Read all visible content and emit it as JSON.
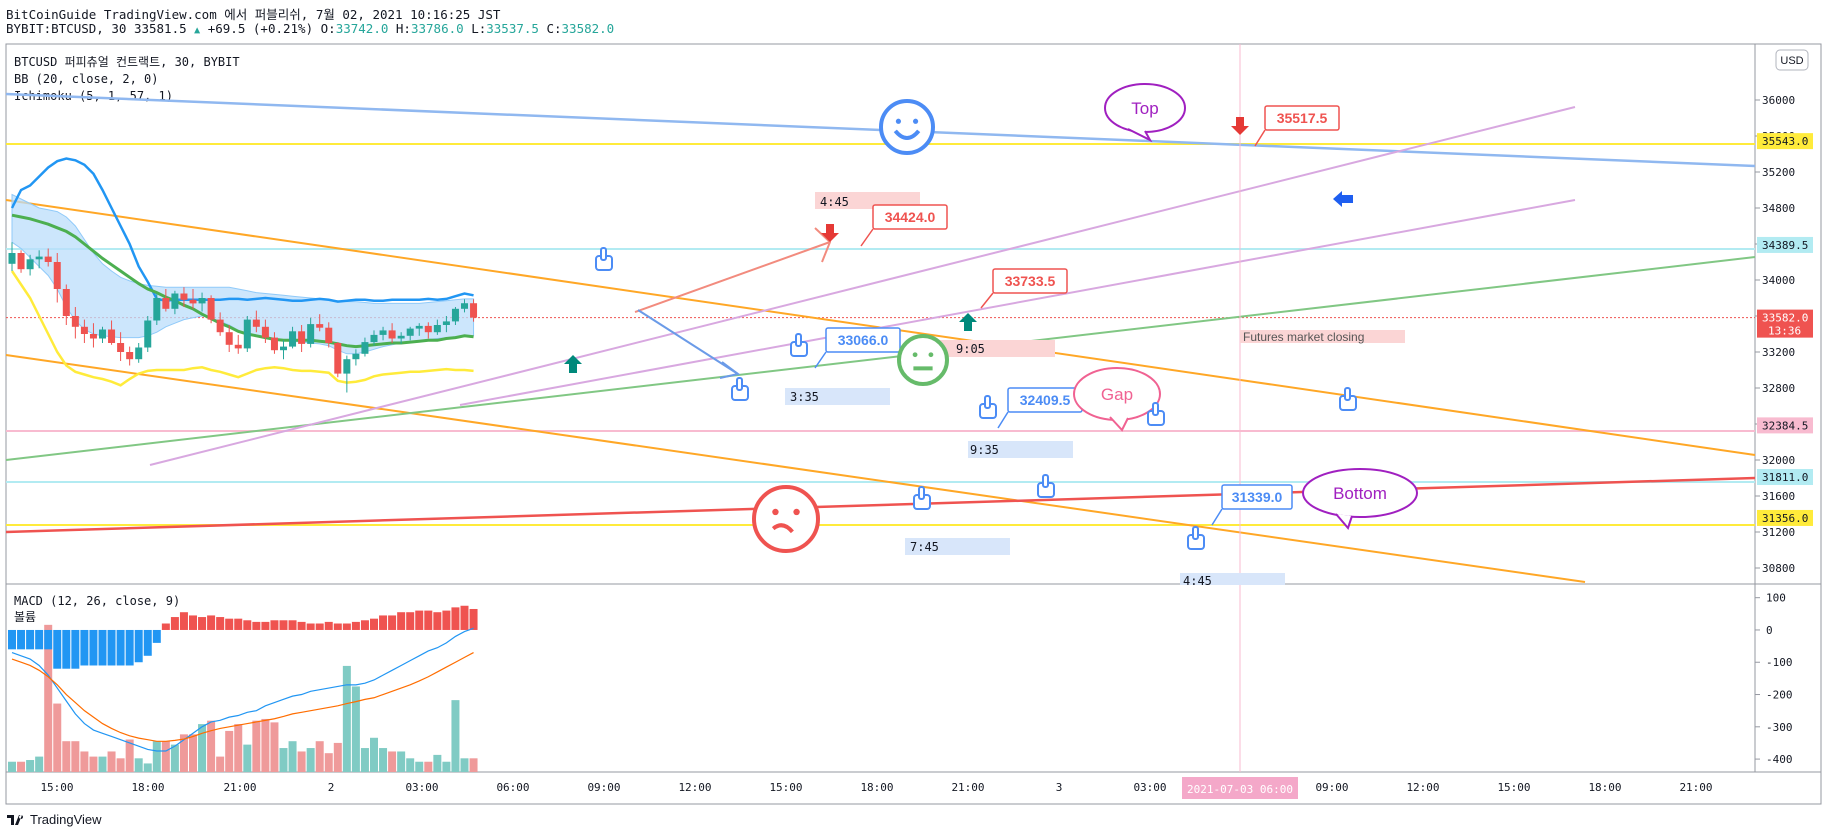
{
  "header": {
    "line1": "BitCoinGuide TradingView.com 에서 퍼블리쉬, 7월 02, 2021 10:16:25 JST",
    "symbol": "BYBIT:BTCUSD, 30",
    "last": "33581.5",
    "change_arrow": "▲",
    "change": "+69.5 (+0.21%)",
    "o": "33742.0",
    "h": "33786.0",
    "l": "33537.5",
    "c": "33582.0"
  },
  "legend": {
    "line1": "BTCUSD 퍼피츄얼 컨트랙트, 30, BYBIT",
    "line2": "BB (20, close, 2, 0)",
    "line3": "Ichimoku (5, 1, 57, 1)"
  },
  "currency": "USD",
  "footer": "TradingView",
  "colors": {
    "up": "#26a69a",
    "down": "#ef5350",
    "bb": "#2196f3",
    "yellow": "#ffeb3b",
    "green": "#66bb6a",
    "orange": "#ffa726",
    "violet": "#ce93d8",
    "cloud": "#bbdefb",
    "redline": "#ef5350"
  },
  "chart_data": [
    {
      "type": "candlestick",
      "title": "BTCUSD 퍼피츄얼 컨트랙트, 30, BYBIT",
      "x_ticks": [
        "15:00",
        "18:00",
        "21:00",
        "2",
        "03:00",
        "06:00",
        "09:00",
        "12:00",
        "15:00",
        "18:00",
        "21:00",
        "3",
        "03:00",
        "06:00",
        "09:00",
        "12:00",
        "15:00",
        "18:00",
        "21:00"
      ],
      "cursor_time_label": "2021-07-03  06:00",
      "y_ticks": [
        36000,
        35600,
        35200,
        34800,
        34400,
        34000,
        33600,
        33200,
        32800,
        32400,
        32000,
        31600,
        31200,
        30800
      ],
      "ylim": [
        30700,
        36500
      ],
      "candles": [
        [
          34180,
          34420,
          34100,
          34300
        ],
        [
          34300,
          34330,
          34080,
          34120
        ],
        [
          34120,
          34280,
          34050,
          34230
        ],
        [
          34230,
          34330,
          34130,
          34260
        ],
        [
          34260,
          34350,
          34150,
          34200
        ],
        [
          34200,
          34300,
          33750,
          33900
        ],
        [
          33900,
          33950,
          33500,
          33600
        ],
        [
          33600,
          33700,
          33350,
          33480
        ],
        [
          33480,
          33560,
          33300,
          33400
        ],
        [
          33400,
          33520,
          33250,
          33350
        ],
        [
          33350,
          33480,
          33300,
          33450
        ],
        [
          33450,
          33550,
          33280,
          33300
        ],
        [
          33300,
          33420,
          33100,
          33200
        ],
        [
          33200,
          33260,
          33050,
          33120
        ],
        [
          33120,
          33300,
          33080,
          33250
        ],
        [
          33250,
          33600,
          33200,
          33550
        ],
        [
          33550,
          33850,
          33500,
          33800
        ],
        [
          33800,
          33900,
          33650,
          33680
        ],
        [
          33680,
          33880,
          33620,
          33850
        ],
        [
          33850,
          33920,
          33700,
          33780
        ],
        [
          33780,
          33900,
          33680,
          33740
        ],
        [
          33740,
          33860,
          33650,
          33800
        ],
        [
          33800,
          33830,
          33520,
          33560
        ],
        [
          33560,
          33640,
          33380,
          33420
        ],
        [
          33420,
          33500,
          33200,
          33280
        ],
        [
          33280,
          33390,
          33180,
          33240
        ],
        [
          33240,
          33600,
          33200,
          33560
        ],
        [
          33560,
          33660,
          33420,
          33480
        ],
        [
          33480,
          33560,
          33300,
          33360
        ],
        [
          33360,
          33420,
          33180,
          33220
        ],
        [
          33220,
          33330,
          33120,
          33260
        ],
        [
          33260,
          33480,
          33240,
          33430
        ],
        [
          33430,
          33500,
          33200,
          33290
        ],
        [
          33290,
          33580,
          33250,
          33510
        ],
        [
          33510,
          33620,
          33430,
          33470
        ],
        [
          33470,
          33530,
          33250,
          33300
        ],
        [
          33300,
          33310,
          32920,
          32960
        ],
        [
          32960,
          33160,
          32750,
          33120
        ],
        [
          33120,
          33230,
          33050,
          33180
        ],
        [
          33180,
          33360,
          33150,
          33310
        ],
        [
          33310,
          33440,
          33270,
          33390
        ],
        [
          33390,
          33480,
          33330,
          33440
        ],
        [
          33440,
          33520,
          33300,
          33350
        ],
        [
          33350,
          33420,
          33290,
          33380
        ],
        [
          33380,
          33480,
          33330,
          33460
        ],
        [
          33460,
          33520,
          33380,
          33490
        ],
        [
          33490,
          33530,
          33350,
          33420
        ],
        [
          33420,
          33560,
          33390,
          33500
        ],
        [
          33500,
          33600,
          33420,
          33540
        ],
        [
          33540,
          33700,
          33500,
          33680
        ],
        [
          33680,
          33786,
          33640,
          33742
        ],
        [
          33742,
          33786,
          33537,
          33582
        ]
      ],
      "bb_upper": [
        34800,
        35000,
        35050,
        35150,
        35250,
        35320,
        35350,
        35330,
        35280,
        35180,
        35000,
        34800,
        34600,
        34400,
        34150,
        33980,
        33790,
        33770,
        33780,
        33780,
        33780,
        33780,
        33780,
        33780,
        33790,
        33790,
        33780,
        33790,
        33800,
        33790,
        33780,
        33770,
        33770,
        33780,
        33790,
        33780,
        33760,
        33770,
        33780,
        33780,
        33770,
        33770,
        33780,
        33780,
        33780,
        33780,
        33790,
        33780,
        33790,
        33820,
        33850,
        33830
      ],
      "bb_middle": [
        34720,
        34700,
        34680,
        34650,
        34620,
        34580,
        34540,
        34480,
        34400,
        34320,
        34240,
        34170,
        34100,
        34030,
        33960,
        33900,
        33860,
        33810,
        33770,
        33720,
        33680,
        33620,
        33570,
        33520,
        33480,
        33430,
        33400,
        33380,
        33360,
        33340,
        33330,
        33330,
        33330,
        33330,
        33320,
        33310,
        33290,
        33270,
        33260,
        33270,
        33280,
        33290,
        33300,
        33300,
        33310,
        33320,
        33330,
        33330,
        33350,
        33360,
        33380,
        33370
      ],
      "bb_lower": [
        34100,
        33950,
        33800,
        33600,
        33400,
        33200,
        33050,
        32980,
        32950,
        32920,
        32900,
        32870,
        32830,
        32900,
        32960,
        32990,
        33000,
        33000,
        33000,
        33000,
        33020,
        33030,
        33000,
        32980,
        32950,
        32920,
        32960,
        33000,
        33020,
        33030,
        33020,
        33000,
        32990,
        32990,
        32980,
        32970,
        32880,
        32860,
        32870,
        32890,
        32930,
        32950,
        32960,
        32970,
        32980,
        32980,
        32990,
        33000,
        33010,
        33000,
        33000,
        32990
      ],
      "annotations": [
        {
          "text": "35517.5",
          "price": 35517.5,
          "color": "#ef5350"
        },
        {
          "text": "34424.0",
          "price": 34424.0,
          "color": "#ef5350"
        },
        {
          "text": "33733.5",
          "price": 33733.5,
          "color": "#ef5350"
        },
        {
          "text": "33066.0",
          "price": 33066.0,
          "color": "#4c8cf5"
        },
        {
          "text": "32409.5",
          "price": 32409.5,
          "color": "#4c8cf5"
        },
        {
          "text": "31339.0",
          "price": 31339.0,
          "color": "#4c8cf5"
        },
        {
          "text": "Top",
          "color": "#a020c0"
        },
        {
          "text": "Bottom",
          "color": "#a020c0"
        },
        {
          "text": "Gap",
          "color": "#f06292"
        },
        {
          "text": "Futures market closing",
          "color": "#555555"
        },
        {
          "text": "4:45"
        },
        {
          "text": "3:35"
        },
        {
          "text": "9:05"
        },
        {
          "text": "9:35"
        },
        {
          "text": "7:45"
        },
        {
          "text": "4:45"
        }
      ],
      "price_labels": [
        {
          "text": "35543.0",
          "value": 35543.0,
          "color": "#ffeb3b"
        },
        {
          "text": "34389.5",
          "value": 34389.5,
          "color": "#b2ebf2"
        },
        {
          "text": "33582.0",
          "value": 33582.0,
          "color": "#ef5350",
          "sub": "13:36"
        },
        {
          "text": "32384.5",
          "value": 32384.5,
          "color": "#f8bbd0"
        },
        {
          "text": "31811.0",
          "value": 31811.0,
          "color": "#b2ebf2"
        },
        {
          "text": "31356.0",
          "value": 31356.0,
          "color": "#ffeb3b"
        }
      ]
    },
    {
      "type": "bar",
      "title": "MACD (12, 26, close, 9)",
      "subtitle": "볼륨",
      "y_ticks": [
        100,
        0,
        -100,
        -200,
        -300,
        -400
      ],
      "ylim": [
        -440,
        130
      ],
      "histogram": [
        -60,
        -60,
        -60,
        -60,
        -60,
        -120,
        -120,
        -120,
        -110,
        -110,
        -110,
        -110,
        -110,
        -110,
        -100,
        -80,
        -40,
        20,
        40,
        55,
        45,
        40,
        45,
        40,
        35,
        35,
        30,
        25,
        25,
        30,
        30,
        30,
        25,
        20,
        20,
        25,
        20,
        20,
        25,
        30,
        35,
        45,
        45,
        55,
        55,
        60,
        60,
        55,
        60,
        70,
        75,
        65
      ],
      "macd": [
        -70,
        -80,
        -90,
        -110,
        -140,
        -180,
        -220,
        -260,
        -290,
        -310,
        -320,
        -330,
        -340,
        -350,
        -360,
        -370,
        -375,
        -375,
        -360,
        -340,
        -320,
        -300,
        -285,
        -280,
        -270,
        -265,
        -255,
        -250,
        -235,
        -225,
        -215,
        -205,
        -200,
        -190,
        -185,
        -180,
        -175,
        -170,
        -170,
        -165,
        -155,
        -140,
        -125,
        -110,
        -95,
        -80,
        -65,
        -55,
        -40,
        -20,
        -5,
        5
      ],
      "signal": [
        -90,
        -100,
        -110,
        -125,
        -145,
        -170,
        -200,
        -225,
        -250,
        -270,
        -290,
        -305,
        -318,
        -328,
        -335,
        -340,
        -345,
        -345,
        -342,
        -338,
        -330,
        -320,
        -312,
        -305,
        -300,
        -295,
        -290,
        -285,
        -280,
        -275,
        -268,
        -260,
        -255,
        -250,
        -245,
        -240,
        -235,
        -228,
        -222,
        -215,
        -210,
        -200,
        -190,
        -180,
        -170,
        -158,
        -145,
        -130,
        -115,
        -100,
        -85,
        -70
      ],
      "volume": [
        30,
        30,
        35,
        45,
        430,
        200,
        90,
        90,
        60,
        45,
        45,
        60,
        40,
        95,
        40,
        25,
        90,
        90,
        80,
        110,
        110,
        140,
        150,
        45,
        120,
        140,
        80,
        150,
        155,
        145,
        70,
        90,
        60,
        70,
        90,
        55,
        85,
        310,
        250,
        70,
        100,
        70,
        60,
        60,
        40,
        30,
        30,
        50,
        30,
        210,
        40,
        40
      ]
    }
  ]
}
